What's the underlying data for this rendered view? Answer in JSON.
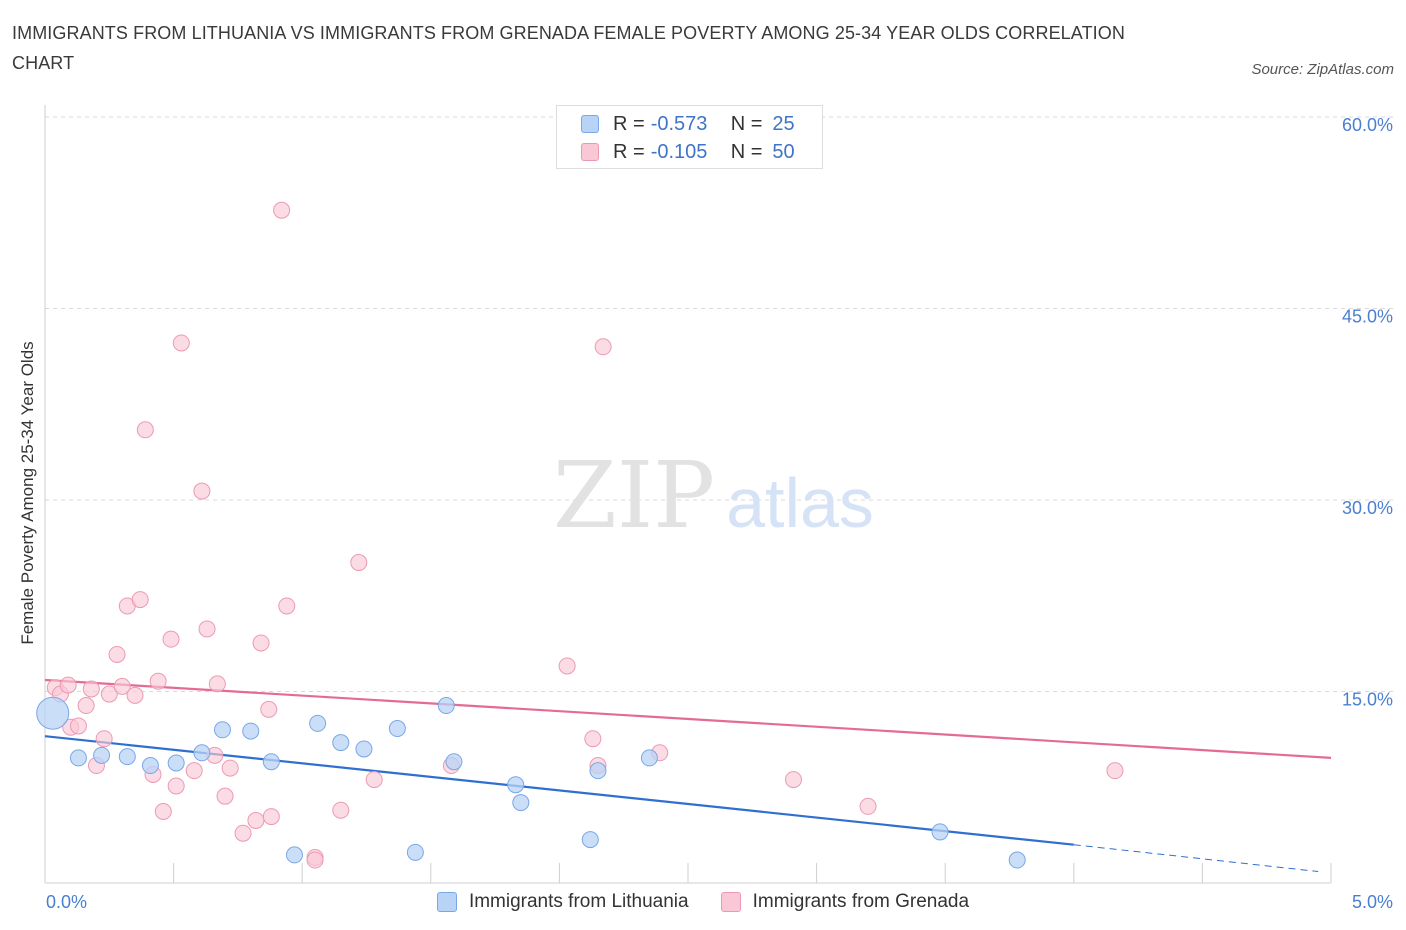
{
  "header": {
    "title": "IMMIGRANTS FROM LITHUANIA VS IMMIGRANTS FROM GRENADA FEMALE POVERTY AMONG 25-34 YEAR OLDS CORRELATION CHART",
    "source": "Source: ZipAtlas.com"
  },
  "watermark": {
    "zip": "ZIP",
    "atlas": "atlas"
  },
  "legend_top": {
    "rows": [
      {
        "r_label": "R =",
        "r_value": "-0.573",
        "n_label": "N =",
        "n_value": "25"
      },
      {
        "r_label": "R =",
        "r_value": "-0.105",
        "n_label": "N =",
        "n_value": "50"
      }
    ]
  },
  "legend_bottom": {
    "series1": "Immigrants from Lithuania",
    "series2": "Immigrants from Grenada"
  },
  "colors": {
    "blue_fill": "#b9d3f6",
    "blue_stroke": "#7aa7e6",
    "blue_line": "#2f6fcf",
    "pink_fill": "#f9c7d6",
    "pink_stroke": "#ec9ab4",
    "pink_line": "#e46c92",
    "tick_label": "#4a7fd0"
  },
  "chart_data": {
    "type": "scatter",
    "title": "IMMIGRANTS FROM LITHUANIA VS IMMIGRANTS FROM GRENADA FEMALE POVERTY AMONG 25-34 YEAR OLDS CORRELATION CHART",
    "xlabel": "",
    "ylabel": "Female Poverty Among 25-34 Year Olds",
    "xlim": [
      0,
      5
    ],
    "ylim": [
      0,
      60
    ],
    "x_tick_labels": [
      {
        "value": 0,
        "label": "0.0%"
      },
      {
        "value": 5,
        "label": "5.0%"
      }
    ],
    "y_tick_labels": [
      {
        "value": 15,
        "label": "15.0%"
      },
      {
        "value": 30,
        "label": "30.0%"
      },
      {
        "value": 45,
        "label": "45.0%"
      },
      {
        "value": 60,
        "label": "60.0%"
      }
    ],
    "grid": true,
    "legend": "top-center",
    "series": [
      {
        "name": "Immigrants from Lithuania",
        "color": "blue",
        "R": -0.573,
        "N": 25,
        "trend": {
          "x": [
            0,
            4.0
          ],
          "y": [
            11.5,
            3.0
          ],
          "dashed_to": [
            4.95,
            0.9
          ]
        },
        "points": [
          [
            0.03,
            13.3,
            16
          ],
          [
            0.13,
            9.8,
            8
          ],
          [
            0.22,
            10.0,
            8
          ],
          [
            0.32,
            9.9,
            8
          ],
          [
            0.41,
            9.2,
            8
          ],
          [
            0.51,
            9.4,
            8
          ],
          [
            0.61,
            10.2,
            8
          ],
          [
            0.69,
            12.0,
            8
          ],
          [
            0.8,
            11.9,
            8
          ],
          [
            0.88,
            9.5,
            8
          ],
          [
            0.97,
            2.2,
            8
          ],
          [
            1.06,
            12.5,
            8
          ],
          [
            1.15,
            11.0,
            8
          ],
          [
            1.24,
            10.5,
            8
          ],
          [
            1.37,
            12.1,
            8
          ],
          [
            1.44,
            2.4,
            8
          ],
          [
            1.56,
            13.9,
            8
          ],
          [
            1.59,
            9.5,
            8
          ],
          [
            1.83,
            7.7,
            8
          ],
          [
            1.85,
            6.3,
            8
          ],
          [
            2.12,
            3.4,
            8
          ],
          [
            2.15,
            8.8,
            8
          ],
          [
            2.35,
            9.8,
            8
          ],
          [
            3.48,
            4.0,
            8
          ],
          [
            3.78,
            1.8,
            8
          ]
        ]
      },
      {
        "name": "Immigrants from Grenada",
        "color": "pink",
        "R": -0.105,
        "N": 50,
        "trend": {
          "x": [
            0,
            5.0
          ],
          "y": [
            15.9,
            9.8
          ]
        },
        "points": [
          [
            0.04,
            15.3,
            8
          ],
          [
            0.06,
            14.8,
            8
          ],
          [
            0.09,
            15.5,
            8
          ],
          [
            0.1,
            12.2,
            8
          ],
          [
            0.13,
            12.3,
            8
          ],
          [
            0.16,
            13.9,
            8
          ],
          [
            0.18,
            15.2,
            8
          ],
          [
            0.2,
            9.2,
            8
          ],
          [
            0.23,
            11.3,
            8
          ],
          [
            0.25,
            14.8,
            8
          ],
          [
            0.28,
            17.9,
            8
          ],
          [
            0.3,
            15.4,
            8
          ],
          [
            0.32,
            21.7,
            8
          ],
          [
            0.35,
            14.7,
            8
          ],
          [
            0.37,
            22.2,
            8
          ],
          [
            0.39,
            35.5,
            8
          ],
          [
            0.42,
            8.5,
            8
          ],
          [
            0.44,
            15.8,
            8
          ],
          [
            0.46,
            5.6,
            8
          ],
          [
            0.49,
            19.1,
            8
          ],
          [
            0.51,
            7.6,
            8
          ],
          [
            0.53,
            42.3,
            8
          ],
          [
            0.58,
            8.8,
            8
          ],
          [
            0.61,
            30.7,
            8
          ],
          [
            0.63,
            19.9,
            8
          ],
          [
            0.66,
            10.0,
            8
          ],
          [
            0.67,
            15.6,
            8
          ],
          [
            0.7,
            6.8,
            8
          ],
          [
            0.72,
            9.0,
            8
          ],
          [
            0.77,
            3.9,
            8
          ],
          [
            0.82,
            4.9,
            8
          ],
          [
            0.84,
            18.8,
            8
          ],
          [
            0.87,
            13.6,
            8
          ],
          [
            0.88,
            5.2,
            8
          ],
          [
            0.92,
            52.7,
            8
          ],
          [
            0.94,
            21.7,
            8
          ],
          [
            1.05,
            2.0,
            8
          ],
          [
            1.05,
            1.8,
            8
          ],
          [
            1.15,
            5.7,
            8
          ],
          [
            1.22,
            25.1,
            8
          ],
          [
            1.28,
            8.1,
            8
          ],
          [
            1.58,
            9.2,
            8
          ],
          [
            2.03,
            17.0,
            8
          ],
          [
            2.13,
            11.3,
            8
          ],
          [
            2.15,
            9.2,
            8
          ],
          [
            2.17,
            42.0,
            8
          ],
          [
            2.39,
            10.2,
            8
          ],
          [
            2.91,
            8.1,
            8
          ],
          [
            3.2,
            6.0,
            8
          ],
          [
            4.16,
            8.8,
            8
          ]
        ]
      }
    ]
  }
}
